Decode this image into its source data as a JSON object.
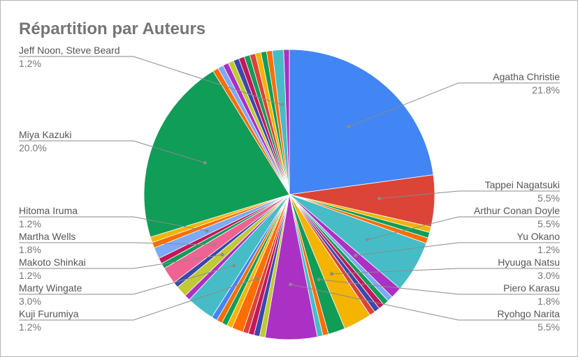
{
  "chart_data": {
    "type": "pie",
    "title": "Répartition par Auteurs",
    "slices": [
      {
        "label": "Agatha Christie",
        "value": 21.8,
        "color": "#4285f4"
      },
      {
        "label": "Tappei Nagatsuki",
        "value": 5.5,
        "color": "#db4437"
      },
      {
        "label": "",
        "value": 0.6,
        "color": "#f4b400"
      },
      {
        "label": "",
        "value": 0.6,
        "color": "#0f9d58"
      },
      {
        "label": "",
        "value": 0.6,
        "color": "#ff6d00"
      },
      {
        "label": "Arthur Conan Doyle",
        "value": 5.5,
        "color": "#46bdc6"
      },
      {
        "label": "Yu Okano",
        "value": 1.2,
        "color": "#ab30c4"
      },
      {
        "label": "",
        "value": 0.6,
        "color": "#7baaf7"
      },
      {
        "label": "",
        "value": 0.6,
        "color": "#0f9d58"
      },
      {
        "label": "",
        "value": 0.6,
        "color": "#c2185b"
      },
      {
        "label": "",
        "value": 0.6,
        "color": "#3949ab"
      },
      {
        "label": "",
        "value": 0.6,
        "color": "#db4437"
      },
      {
        "label": "Hyuuga Natsu",
        "value": 3.0,
        "color": "#f4b400"
      },
      {
        "label": "Piero Karasu",
        "value": 1.8,
        "color": "#0f9d58"
      },
      {
        "label": "",
        "value": 0.6,
        "color": "#ff6d00"
      },
      {
        "label": "",
        "value": 0.6,
        "color": "#46bdc6"
      },
      {
        "label": "Ryohgo Narita",
        "value": 5.5,
        "color": "#ab30c4"
      },
      {
        "label": "",
        "value": 0.6,
        "color": "#c0ca33"
      },
      {
        "label": "",
        "value": 0.6,
        "color": "#3949ab"
      },
      {
        "label": "",
        "value": 0.6,
        "color": "#c2185b"
      },
      {
        "label": "",
        "value": 0.6,
        "color": "#db4437"
      },
      {
        "label": "Kuji Furumiya",
        "value": 1.2,
        "color": "#ff6d00"
      },
      {
        "label": "",
        "value": 0.6,
        "color": "#f4b400"
      },
      {
        "label": "",
        "value": 0.6,
        "color": "#0f9d58"
      },
      {
        "label": "",
        "value": 0.6,
        "color": "#ff6d00"
      },
      {
        "label": "",
        "value": 0.6,
        "color": "#4285f4"
      },
      {
        "label": "Marty Wingate",
        "value": 3.0,
        "color": "#46bdc6"
      },
      {
        "label": "",
        "value": 0.6,
        "color": "#ab30c4"
      },
      {
        "label": "Makoto Shinkai",
        "value": 1.2,
        "color": "#c0ca33"
      },
      {
        "label": "",
        "value": 0.6,
        "color": "#3949ab"
      },
      {
        "label": "Martha Wells",
        "value": 1.8,
        "color": "#f06292"
      },
      {
        "label": "",
        "value": 0.6,
        "color": "#0f9d58"
      },
      {
        "label": "",
        "value": 0.6,
        "color": "#c2185b"
      },
      {
        "label": "Hitoma Iruma",
        "value": 1.2,
        "color": "#7baaf7"
      },
      {
        "label": "",
        "value": 0.6,
        "color": "#ff6d00"
      },
      {
        "label": "",
        "value": 0.6,
        "color": "#f4b400"
      },
      {
        "label": "Miya Kazuki",
        "value": 20.0,
        "color": "#0f9d58"
      },
      {
        "label": "",
        "value": 0.6,
        "color": "#ff6d00"
      },
      {
        "label": "",
        "value": 0.6,
        "color": "#7baaf7"
      },
      {
        "label": "",
        "value": 0.6,
        "color": "#ab30c4"
      },
      {
        "label": "",
        "value": 0.6,
        "color": "#c0ca33"
      },
      {
        "label": "",
        "value": 0.6,
        "color": "#3949ab"
      },
      {
        "label": "",
        "value": 0.6,
        "color": "#c2185b"
      },
      {
        "label": "",
        "value": 0.6,
        "color": "#0f9d58"
      },
      {
        "label": "",
        "value": 0.6,
        "color": "#db4437"
      },
      {
        "label": "",
        "value": 0.6,
        "color": "#f4b400"
      },
      {
        "label": "",
        "value": 0.6,
        "color": "#0f9d58"
      },
      {
        "label": "",
        "value": 0.6,
        "color": "#ff6d00"
      },
      {
        "label": "Jeff Noon, Steve Beard",
        "value": 1.2,
        "color": "#46bdc6"
      },
      {
        "label": "",
        "value": 0.6,
        "color": "#ab30c4"
      }
    ],
    "labels": [
      {
        "slice": 0,
        "name": "Agatha Christie",
        "pct": "21.8%",
        "side": "right"
      },
      {
        "slice": 1,
        "name": "Tappei Nagatsuki",
        "pct": "5.5%",
        "side": "right"
      },
      {
        "slice": 5,
        "name": "Arthur Conan Doyle",
        "pct": "5.5%",
        "side": "right"
      },
      {
        "slice": 6,
        "name": "Yu Okano",
        "pct": "1.2%",
        "side": "right"
      },
      {
        "slice": 12,
        "name": "Hyuuga Natsu",
        "pct": "3.0%",
        "side": "right"
      },
      {
        "slice": 13,
        "name": "Piero Karasu",
        "pct": "1.8%",
        "side": "right"
      },
      {
        "slice": 16,
        "name": "Ryohgo Narita",
        "pct": "5.5%",
        "side": "right"
      },
      {
        "slice": 48,
        "name": "Jeff Noon, Steve Beard",
        "pct": "1.2%",
        "side": "left"
      },
      {
        "slice": 36,
        "name": "Miya Kazuki",
        "pct": "20.0%",
        "side": "left"
      },
      {
        "slice": 33,
        "name": "Hitoma Iruma",
        "pct": "1.2%",
        "side": "left"
      },
      {
        "slice": 30,
        "name": "Martha Wells",
        "pct": "1.8%",
        "side": "left"
      },
      {
        "slice": 28,
        "name": "Makoto Shinkai",
        "pct": "1.2%",
        "side": "left"
      },
      {
        "slice": 26,
        "name": "Marty Wingate",
        "pct": "3.0%",
        "side": "left"
      },
      {
        "slice": 21,
        "name": "Kuji Furumiya",
        "pct": "1.2%",
        "side": "left"
      }
    ],
    "legend": "none"
  }
}
